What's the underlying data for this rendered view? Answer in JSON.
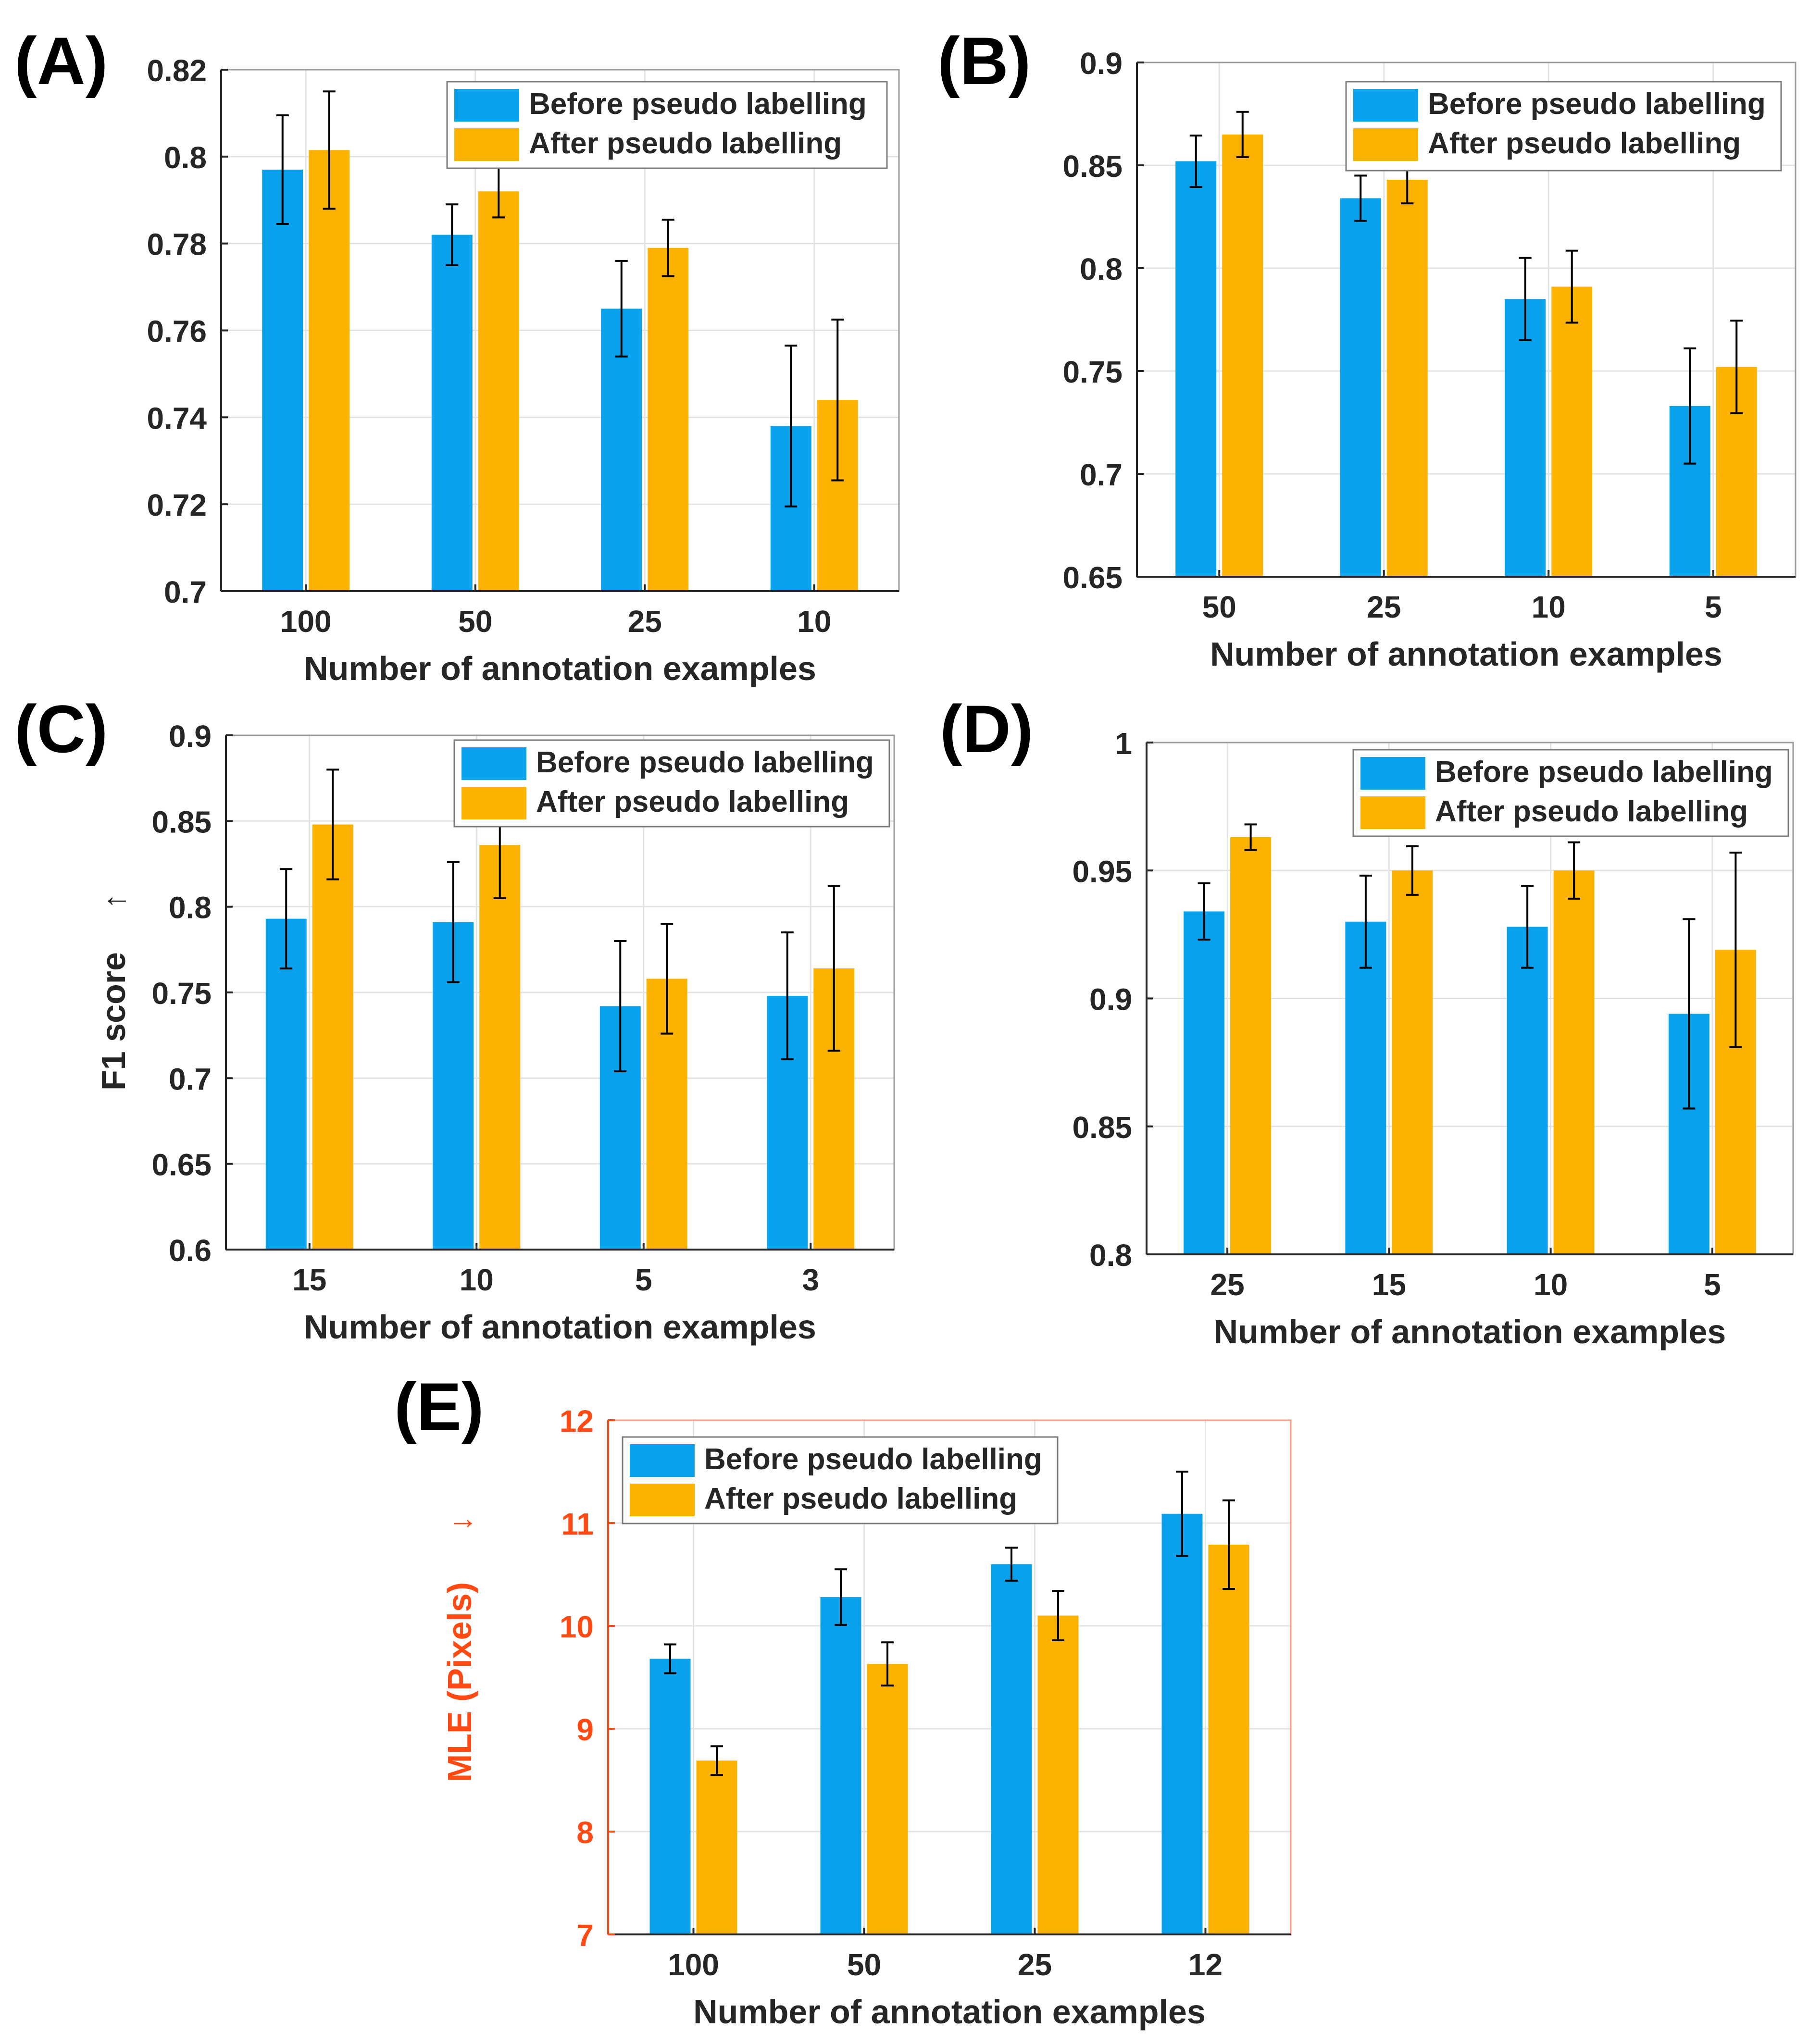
{
  "colors": {
    "before": "#0AA2EC",
    "after": "#FDB100",
    "axis": "#262626",
    "grid": "#e3e3e3",
    "mle_axis": "#FF4A14",
    "panel_label": "#000000"
  },
  "chart_data": [
    {
      "panel": "(A)",
      "type": "bar",
      "title": "",
      "xlabel": "Number of annotation examples",
      "ylabel": "",
      "ylabel_arrow": "",
      "categories": [
        "100",
        "50",
        "25",
        "10"
      ],
      "ylim": [
        0.7,
        0.82
      ],
      "yticks": [
        0.7,
        0.72,
        0.74,
        0.76,
        0.78,
        0.8,
        0.82
      ],
      "ytick_labels": [
        "0.7",
        "0.72",
        "0.74",
        "0.76",
        "0.78",
        "0.8",
        "0.82"
      ],
      "grid": true,
      "legend_position": "top-right",
      "series": [
        {
          "name": "Before pseudo labelling",
          "values": [
            0.797,
            0.782,
            0.765,
            0.738
          ],
          "errors": [
            0.0125,
            0.007,
            0.011,
            0.0185
          ]
        },
        {
          "name": "After pseudo labelling",
          "values": [
            0.8015,
            0.792,
            0.779,
            0.744
          ],
          "errors": [
            0.0135,
            0.006,
            0.0065,
            0.0185
          ]
        }
      ]
    },
    {
      "panel": "(B)",
      "type": "bar",
      "title": "",
      "xlabel": "Number of annotation examples",
      "ylabel": "",
      "ylabel_arrow": "",
      "categories": [
        "50",
        "25",
        "10",
        "5"
      ],
      "ylim": [
        0.65,
        0.9
      ],
      "yticks": [
        0.65,
        0.7,
        0.75,
        0.8,
        0.85,
        0.9
      ],
      "ytick_labels": [
        "0.65",
        "0.7",
        "0.75",
        "0.8",
        "0.85",
        "0.9"
      ],
      "grid": true,
      "legend_position": "top-right",
      "series": [
        {
          "name": "Before pseudo labelling",
          "values": [
            0.852,
            0.834,
            0.785,
            0.733
          ],
          "errors": [
            0.0125,
            0.011,
            0.02,
            0.028
          ]
        },
        {
          "name": "After pseudo labelling",
          "values": [
            0.865,
            0.843,
            0.791,
            0.752
          ],
          "errors": [
            0.011,
            0.0115,
            0.0175,
            0.0225
          ]
        }
      ]
    },
    {
      "panel": "(C)",
      "type": "bar",
      "title": "",
      "xlabel": "Number of annotation examples",
      "ylabel": "F1 score",
      "ylabel_arrow": "↑",
      "categories": [
        "15",
        "10",
        "5",
        "3"
      ],
      "ylim": [
        0.6,
        0.9
      ],
      "yticks": [
        0.6,
        0.65,
        0.7,
        0.75,
        0.8,
        0.85,
        0.9
      ],
      "ytick_labels": [
        "0.6",
        "0.65",
        "0.7",
        "0.75",
        "0.8",
        "0.85",
        "0.9"
      ],
      "grid": true,
      "legend_position": "top-right",
      "series": [
        {
          "name": "Before pseudo labelling",
          "values": [
            0.793,
            0.791,
            0.742,
            0.748
          ],
          "errors": [
            0.029,
            0.035,
            0.038,
            0.037
          ]
        },
        {
          "name": "After pseudo labelling",
          "values": [
            0.848,
            0.836,
            0.758,
            0.764
          ],
          "errors": [
            0.032,
            0.031,
            0.032,
            0.048
          ]
        }
      ]
    },
    {
      "panel": "(D)",
      "type": "bar",
      "title": "",
      "xlabel": "Number of annotation examples",
      "ylabel": "",
      "ylabel_arrow": "",
      "categories": [
        "25",
        "15",
        "10",
        "5"
      ],
      "ylim": [
        0.8,
        1.0
      ],
      "yticks": [
        0.8,
        0.85,
        0.9,
        0.95,
        1.0
      ],
      "ytick_labels": [
        "0.8",
        "0.85",
        "0.9",
        "0.95",
        "1"
      ],
      "grid": true,
      "legend_position": "top-right",
      "series": [
        {
          "name": "Before pseudo labelling",
          "values": [
            0.934,
            0.93,
            0.928,
            0.894
          ],
          "errors": [
            0.011,
            0.018,
            0.016,
            0.037
          ]
        },
        {
          "name": "After pseudo labelling",
          "values": [
            0.963,
            0.95,
            0.95,
            0.919
          ],
          "errors": [
            0.005,
            0.0095,
            0.011,
            0.038
          ]
        }
      ]
    },
    {
      "panel": "(E)",
      "type": "bar",
      "title": "",
      "xlabel": "Number of annotation examples",
      "ylabel": "MLE (Pixels)",
      "ylabel_arrow": "↓",
      "categories": [
        "100",
        "50",
        "25",
        "12"
      ],
      "ylim": [
        7,
        12
      ],
      "yticks": [
        7,
        8,
        9,
        10,
        11,
        12
      ],
      "ytick_labels": [
        "7",
        "8",
        "9",
        "10",
        "11",
        "12"
      ],
      "grid": true,
      "legend_position": "top-left",
      "series": [
        {
          "name": "Before pseudo labelling",
          "values": [
            9.68,
            10.28,
            10.6,
            11.09
          ],
          "errors": [
            0.14,
            0.27,
            0.16,
            0.41
          ]
        },
        {
          "name": "After pseudo labelling",
          "values": [
            8.69,
            9.63,
            10.1,
            10.79
          ],
          "errors": [
            0.14,
            0.21,
            0.24,
            0.43
          ]
        }
      ]
    }
  ]
}
